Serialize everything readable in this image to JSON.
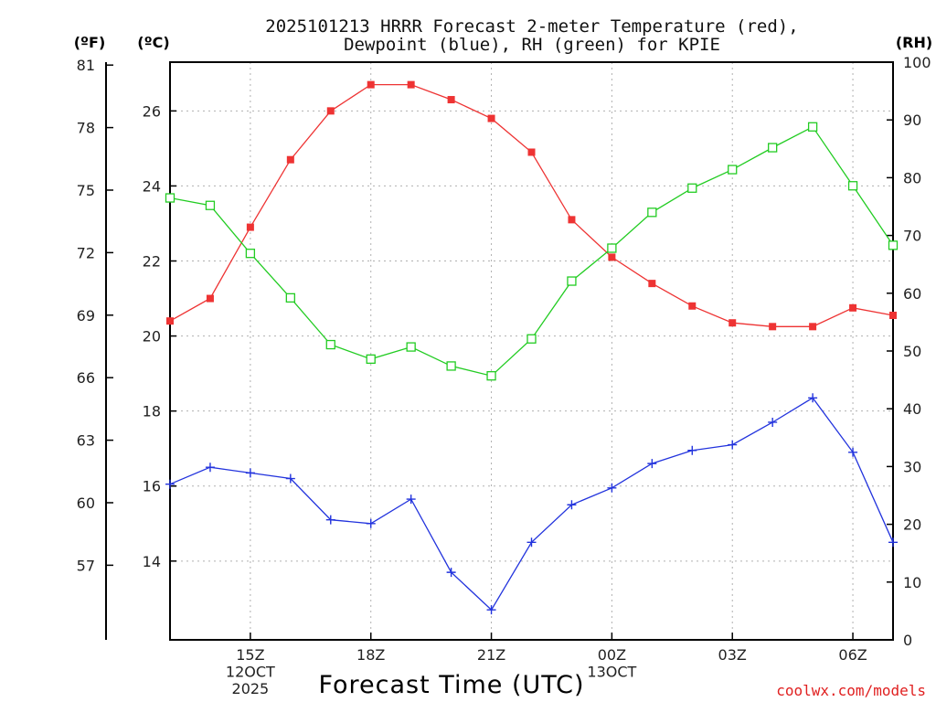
{
  "chart_data": {
    "type": "line",
    "title_lines": [
      "2025101213 HRRR Forecast 2-meter Temperature (red),",
      "Dewpoint (blue), RH (green) for KPIE"
    ],
    "units": {
      "fahrenheit": "(ºF)",
      "celsius": "(ºC)",
      "rh": "(RH)"
    },
    "xlabel": "Forecast Time (UTC)",
    "credit": "coolwx.com/models",
    "x_hours": [
      13,
      14,
      15,
      16,
      17,
      18,
      19,
      20,
      21,
      22,
      23,
      24,
      25,
      26,
      27,
      28,
      29,
      30,
      31
    ],
    "x_range": [
      13,
      31
    ],
    "x_ticks": [
      {
        "hour": 15,
        "lines": [
          "15Z",
          "12OCT",
          "2025"
        ]
      },
      {
        "hour": 18,
        "lines": [
          "18Z"
        ]
      },
      {
        "hour": 21,
        "lines": [
          "21Z"
        ]
      },
      {
        "hour": 24,
        "lines": [
          "00Z",
          "13OCT"
        ]
      },
      {
        "hour": 27,
        "lines": [
          "03Z"
        ]
      },
      {
        "hour": 30,
        "lines": [
          "06Z"
        ]
      }
    ],
    "celsius_axis": {
      "range": [
        11.9,
        27.3
      ],
      "ticks": [
        14,
        16,
        18,
        20,
        22,
        24,
        26
      ],
      "labels": [
        "14",
        "16",
        "18",
        "20",
        "22",
        "24",
        "26"
      ]
    },
    "fahrenheit_axis": {
      "ticks": [
        57,
        60,
        63,
        66,
        69,
        72,
        75,
        78,
        81
      ],
      "labels": [
        "57",
        "60",
        "63",
        "66",
        "69",
        "72",
        "75",
        "78",
        "81"
      ]
    },
    "rh_axis": {
      "range": [
        0,
        100
      ],
      "ticks": [
        0,
        10,
        20,
        30,
        40,
        50,
        60,
        70,
        80,
        90,
        100
      ],
      "labels": [
        "0",
        "10",
        "20",
        "30",
        "40",
        "50",
        "60",
        "70",
        "80",
        "90",
        "100"
      ]
    },
    "series": [
      {
        "name": "2-meter Temperature",
        "axis": "celsius",
        "color": "#ee3333",
        "marker": "filled-square",
        "values": [
          20.4,
          21.0,
          22.9,
          24.7,
          26.0,
          26.7,
          26.7,
          26.3,
          25.8,
          24.9,
          23.1,
          22.1,
          21.4,
          20.8,
          20.35,
          20.25,
          20.25,
          20.75,
          20.55
        ]
      },
      {
        "name": "Dewpoint",
        "axis": "celsius",
        "color": "#2233dd",
        "marker": "plus",
        "values": [
          16.05,
          16.5,
          16.35,
          16.2,
          15.1,
          15.0,
          15.65,
          13.7,
          12.7,
          14.5,
          15.5,
          15.95,
          16.6,
          16.95,
          17.1,
          17.7,
          18.35,
          16.9,
          14.5
        ]
      },
      {
        "name": "Relative Humidity",
        "axis": "rh",
        "color": "#22cc22",
        "marker": "open-square",
        "values": [
          76.5,
          75.2,
          66.9,
          59.2,
          51.1,
          48.6,
          50.7,
          47.4,
          45.7,
          52.1,
          62.1,
          67.8,
          74.0,
          78.2,
          81.4,
          85.2,
          88.8,
          78.6,
          68.3
        ]
      }
    ]
  }
}
